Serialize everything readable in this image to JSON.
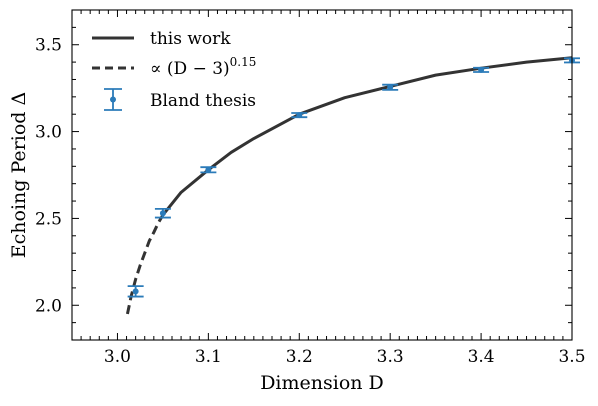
{
  "chart_data": {
    "type": "line",
    "xlabel": "Dimension D",
    "ylabel": "Echoing Period Δ",
    "xlim": [
      2.95,
      3.5
    ],
    "ylim": [
      1.8,
      3.7
    ],
    "x_ticks": [
      "3.0",
      "3.1",
      "3.2",
      "3.3",
      "3.4",
      "3.5"
    ],
    "y_ticks": [
      "2.0",
      "2.5",
      "3.0",
      "3.5"
    ],
    "x_tick_values": [
      3.0,
      3.1,
      3.2,
      3.3,
      3.4,
      3.5
    ],
    "y_tick_values": [
      2.0,
      2.5,
      3.0,
      3.5
    ],
    "grid": false,
    "legend_position": "top-left",
    "series": [
      {
        "name": "this work",
        "style": "solid",
        "color": "#333333",
        "x": [
          3.05,
          3.07,
          3.1,
          3.125,
          3.15,
          3.2,
          3.25,
          3.3,
          3.35,
          3.4,
          3.45,
          3.5
        ],
        "y": [
          2.52,
          2.65,
          2.78,
          2.88,
          2.96,
          3.1,
          3.195,
          3.26,
          3.325,
          3.365,
          3.4,
          3.425
        ]
      },
      {
        "name": "∝ (D − 3)^0.15",
        "name_main": "∝ (D − 3)",
        "name_exp": "0.15",
        "style": "dashed",
        "color": "#333333",
        "x": [
          3.011,
          3.015,
          3.02,
          3.025,
          3.03,
          3.035,
          3.04,
          3.045,
          3.05
        ],
        "y": [
          1.95,
          2.05,
          2.15,
          2.23,
          2.3,
          2.37,
          2.42,
          2.475,
          2.52
        ]
      },
      {
        "name": "Bland thesis",
        "style": "errorbar",
        "color": "#2b7bb9",
        "x": [
          3.02,
          3.05,
          3.1,
          3.2,
          3.3,
          3.4,
          3.5
        ],
        "y": [
          2.08,
          2.53,
          2.78,
          3.095,
          3.255,
          3.355,
          3.41
        ],
        "yerr": [
          0.03,
          0.025,
          0.015,
          0.012,
          0.015,
          0.012,
          0.012
        ]
      }
    ]
  }
}
